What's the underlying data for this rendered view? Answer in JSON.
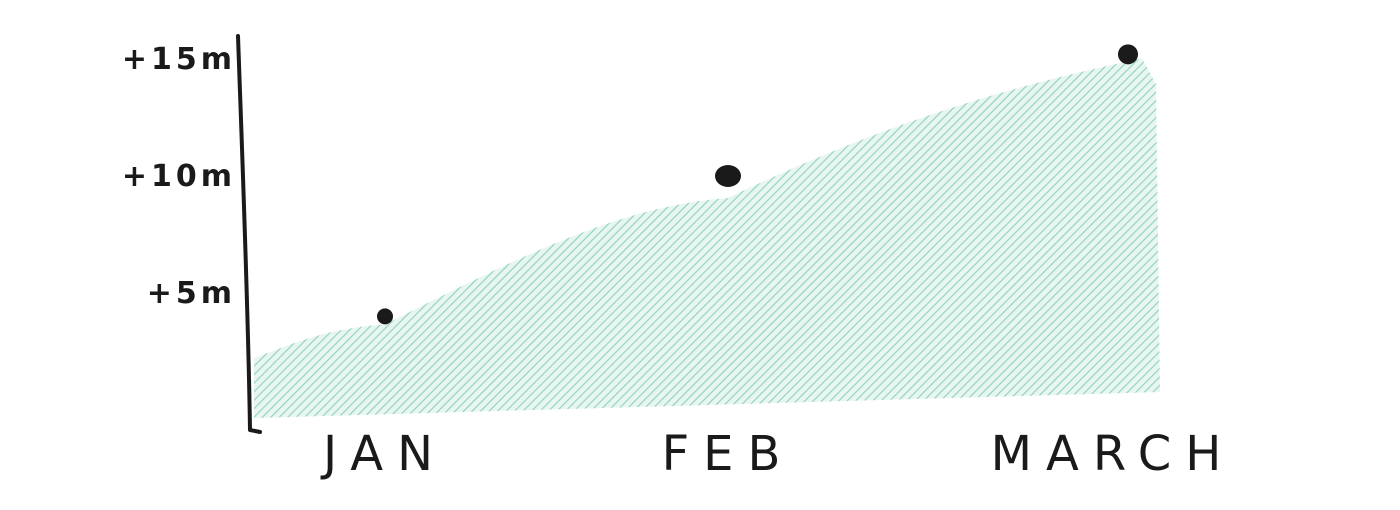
{
  "chart_data": {
    "type": "area",
    "title": "",
    "xlabel": "",
    "ylabel": "",
    "categories": [
      "JAN",
      "FEB",
      "MARCH"
    ],
    "series": [
      {
        "values": [
          4,
          10,
          15.2
        ]
      }
    ],
    "ylim": [
      0,
      16
    ],
    "yticks": [
      {
        "value": 5,
        "label": "+5m"
      },
      {
        "value": 10,
        "label": "+10m"
      },
      {
        "value": 15,
        "label": "+15m"
      }
    ],
    "grid": false,
    "legend": "none",
    "colors": {
      "fill": "#9fd8c6",
      "hatch": "#7ccab2",
      "ink": "#1a1a1a"
    }
  }
}
